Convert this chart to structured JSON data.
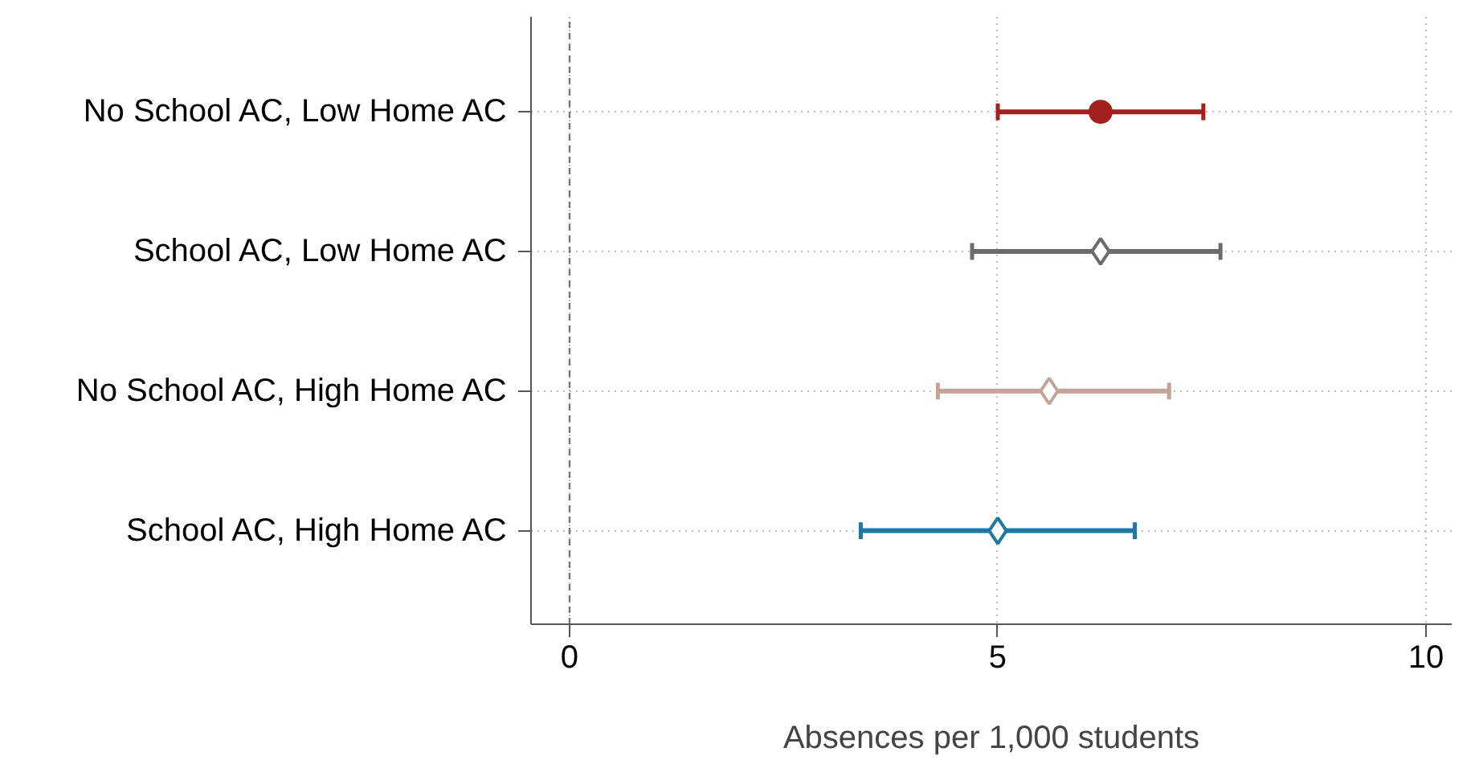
{
  "chart_data": {
    "type": "scatter",
    "orientation": "horizontal",
    "xlabel": "Absences per 1,000 students",
    "categories": [
      "No School AC, Low Home AC",
      "School AC, Low Home AC",
      "No School AC, High Home AC",
      "School AC, High Home AC"
    ],
    "series": [
      {
        "color": "#a3201d",
        "marker": "circle",
        "values": [
          6.2,
          null,
          null,
          null
        ],
        "errors": [
          [
            5.0,
            7.4
          ],
          null,
          null,
          null
        ]
      },
      {
        "color": "#6b6b6b",
        "marker": "diamond",
        "values": [
          null,
          6.2,
          null,
          null
        ],
        "errors": [
          null,
          [
            4.7,
            7.6
          ],
          null,
          null
        ]
      },
      {
        "color": "#c2a397",
        "marker": "diamond",
        "values": [
          null,
          null,
          5.6,
          null
        ],
        "errors": [
          null,
          null,
          [
            4.3,
            7.0
          ],
          null
        ]
      },
      {
        "color": "#1f78a3",
        "marker": "diamond",
        "values": [
          null,
          null,
          null,
          5.0
        ],
        "errors": [
          null,
          null,
          null,
          [
            3.4,
            6.6
          ]
        ]
      }
    ],
    "xlim": [
      -0.45,
      10.3
    ],
    "xticks": [
      0,
      5,
      10
    ],
    "grid": true,
    "ref_lines": [
      {
        "axis": "x",
        "value": 0,
        "color": "#777777",
        "line_style": "dashed"
      }
    ]
  }
}
